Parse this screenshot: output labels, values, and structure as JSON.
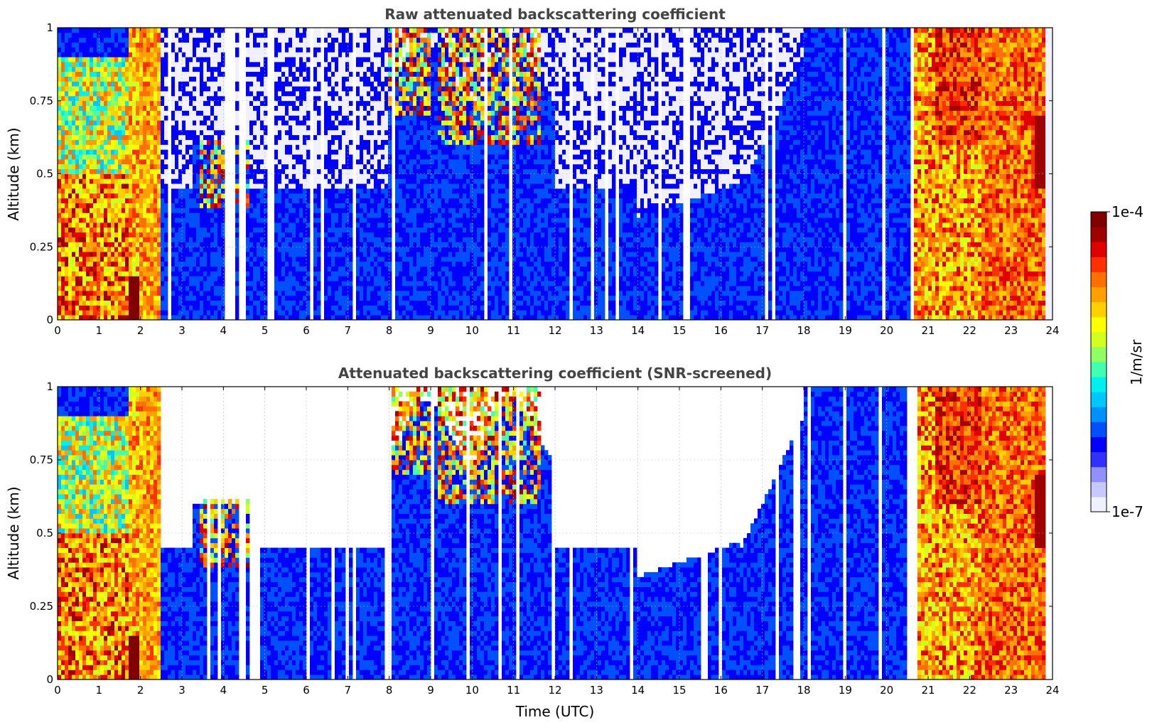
{
  "chart_data": [
    {
      "type": "heatmap",
      "title": "Raw attenuated backscattering coefficient",
      "ylabel": "Altitude (km)",
      "xlabel": "",
      "xlim": [
        0,
        24
      ],
      "ylim": [
        0,
        1
      ],
      "xticks": [
        "0",
        "1",
        "2",
        "3",
        "4",
        "5",
        "6",
        "7",
        "8",
        "9",
        "10",
        "11",
        "12",
        "13",
        "14",
        "15",
        "16",
        "17",
        "18",
        "19",
        "20",
        "21",
        "22",
        "23",
        "24"
      ],
      "yticks": [
        "0",
        "0.25",
        "0.5",
        "0.75",
        "1"
      ],
      "grid": true,
      "screened": false
    },
    {
      "type": "heatmap",
      "title": "Attenuated backscattering coefficient (SNR-screened)",
      "ylabel": "Altitude (km)",
      "xlabel": "Time (UTC)",
      "xlim": [
        0,
        24
      ],
      "ylim": [
        0,
        1
      ],
      "xticks": [
        "0",
        "1",
        "2",
        "3",
        "4",
        "5",
        "6",
        "7",
        "8",
        "9",
        "10",
        "11",
        "12",
        "13",
        "14",
        "15",
        "16",
        "17",
        "18",
        "19",
        "20",
        "21",
        "22",
        "23",
        "24"
      ],
      "yticks": [
        "0",
        "0.25",
        "0.5",
        "0.75",
        "1"
      ],
      "grid": true,
      "screened": true
    }
  ],
  "colorbar": {
    "label": "1/m/sr",
    "max_label": "1e-4",
    "min_label": "1e-7",
    "colors": [
      "#f0f0ff",
      "#c8c8ff",
      "#9090ff",
      "#3030ff",
      "#0000ff",
      "#0050ff",
      "#0090ff",
      "#00c8ff",
      "#00f0f0",
      "#40ffb0",
      "#90ff60",
      "#d0ff20",
      "#ffff00",
      "#ffd000",
      "#ffa000",
      "#ff7000",
      "#ff3000",
      "#e00000",
      "#a00000",
      "#800000"
    ]
  }
}
